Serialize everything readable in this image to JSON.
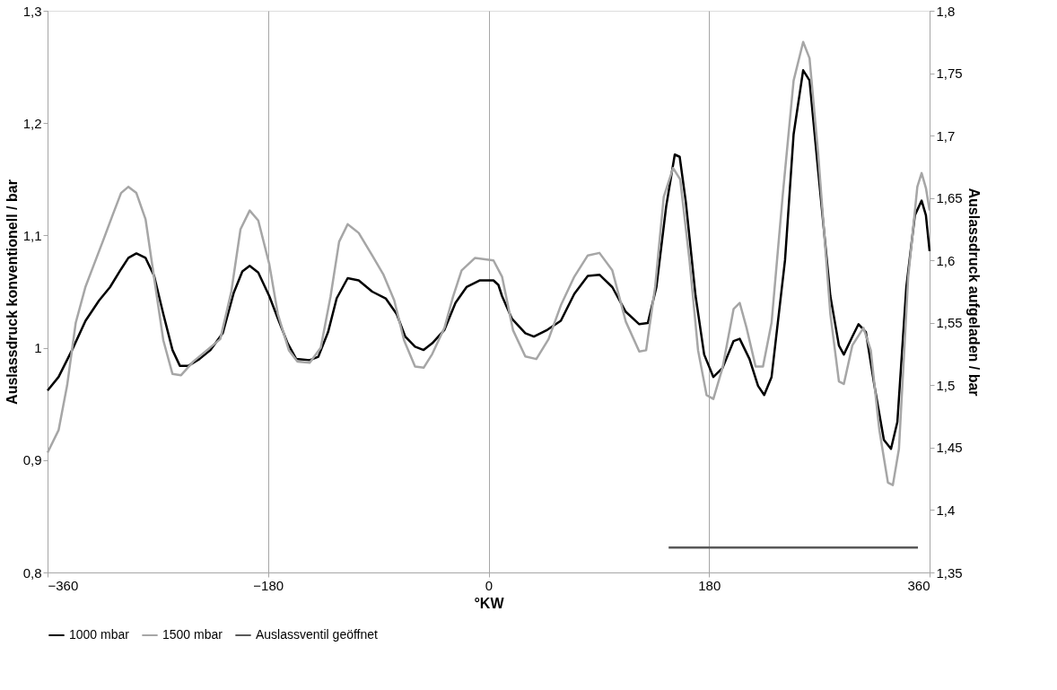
{
  "chart_data": {
    "type": "line",
    "xlabel": "°KW",
    "ylabel": "Auslassdruck konventionell / bar",
    "y2label": "Auslassdruck aufgeladen / bar",
    "xlim": [
      -360,
      360
    ],
    "xticks": [
      -360,
      -180,
      0,
      180,
      360
    ],
    "ylim": [
      0.8,
      1.3
    ],
    "yticks": [
      {
        "value": 0.8,
        "label": "0,8"
      },
      {
        "value": 0.9,
        "label": "0,9"
      },
      {
        "value": 1.0,
        "label": "1"
      },
      {
        "value": 1.1,
        "label": "1,1"
      },
      {
        "value": 1.2,
        "label": "1,2"
      },
      {
        "value": 1.3,
        "label": "1,3"
      }
    ],
    "y2lim": [
      1.35,
      1.8
    ],
    "y2ticks": [
      {
        "value": 1.35,
        "label": "1,35"
      },
      {
        "value": 1.4,
        "label": "1,4"
      },
      {
        "value": 1.45,
        "label": "1,45"
      },
      {
        "value": 1.5,
        "label": "1,5"
      },
      {
        "value": 1.55,
        "label": "1,55"
      },
      {
        "value": 1.6,
        "label": "1,6"
      },
      {
        "value": 1.65,
        "label": "1,65"
      },
      {
        "value": 1.7,
        "label": "1,7"
      },
      {
        "value": 1.75,
        "label": "1,75"
      },
      {
        "value": 1.8,
        "label": "1,8"
      }
    ],
    "grid": "x",
    "legend": "bottom",
    "marker": "none",
    "line_style": "solid",
    "series": [
      {
        "name": "1000 mbar",
        "color": "#000000",
        "axis": "y",
        "x": [
          -360,
          -351,
          -340,
          -329,
          -318,
          -309,
          -300,
          -294,
          -287.5,
          -280,
          -273,
          -265.5,
          -258,
          -252,
          -245,
          -236,
          -227,
          -217,
          -208,
          -201,
          -195,
          -188,
          -179,
          -172,
          -164,
          -157,
          -146,
          -139,
          -131,
          -124,
          -115,
          -106,
          -95,
          -84,
          -75,
          -68,
          -60,
          -53,
          -46,
          -36,
          -27,
          -18,
          -7,
          4,
          8,
          11,
          19,
          30,
          37,
          48,
          59,
          70,
          81,
          90.5,
          101,
          112,
          123,
          130,
          137,
          145,
          152,
          156,
          161,
          169,
          176,
          183.5,
          191,
          200,
          205,
          213,
          220,
          225,
          231,
          242,
          249,
          256.8,
          262,
          269,
          279,
          286,
          290,
          297,
          302,
          308,
          315,
          322.7,
          328.5,
          333.7,
          341,
          348,
          353.5,
          357,
          360
        ],
        "values": [
          0.962,
          0.974,
          0.998,
          1.024,
          1.042,
          1.054,
          1.07,
          1.08,
          1.084,
          1.08,
          1.064,
          1.03,
          0.998,
          0.984,
          0.984,
          0.99,
          0.998,
          1.013,
          1.049,
          1.068,
          1.073,
          1.067,
          1.046,
          1.026,
          1.004,
          0.99,
          0.989,
          0.992,
          1.014,
          1.044,
          1.062,
          1.06,
          1.05,
          1.044,
          1.03,
          1.01,
          1.001,
          0.998,
          1.004,
          1.016,
          1.04,
          1.054,
          1.06,
          1.06,
          1.056,
          1.046,
          1.026,
          1.013,
          1.01,
          1.016,
          1.024,
          1.048,
          1.064,
          1.065,
          1.054,
          1.032,
          1.021,
          1.022,
          1.054,
          1.126,
          1.172,
          1.17,
          1.13,
          1.046,
          0.994,
          0.974,
          0.982,
          1.006,
          1.008,
          0.99,
          0.966,
          0.958,
          0.974,
          1.078,
          1.19,
          1.247,
          1.238,
          1.158,
          1.046,
          1.002,
          0.994,
          1.01,
          1.021,
          1.014,
          0.966,
          0.918,
          0.91,
          0.934,
          1.054,
          1.118,
          1.131,
          1.118,
          1.086
        ]
      },
      {
        "name": "1500 mbar",
        "color": "#a6a6a6",
        "axis": "y2",
        "x": [
          -360,
          -351,
          -344,
          -337,
          -329,
          -322,
          -315,
          -307,
          -300,
          -294,
          -287.5,
          -280,
          -273,
          -265.5,
          -258,
          -251,
          -241,
          -230,
          -219,
          -210,
          -202.5,
          -195,
          -188,
          -179,
          -172,
          -163,
          -156,
          -146,
          -137,
          -129,
          -122,
          -115,
          -106,
          -95,
          -86,
          -77,
          -69,
          -60,
          -53,
          -46,
          -36,
          -29,
          -22,
          -11,
          4,
          11,
          20,
          30,
          39,
          49,
          59,
          70,
          81,
          90.5,
          101,
          112,
          123,
          128.6,
          136,
          143,
          150.6,
          156.4,
          164,
          171,
          178,
          183.5,
          191,
          200,
          205,
          210.6,
          218,
          224,
          231,
          240,
          249,
          256.8,
          262,
          269,
          279,
          286,
          290,
          297,
          306,
          312,
          319,
          326,
          330,
          335,
          342.5,
          350,
          353.5,
          357,
          360
        ],
        "values": [
          1.446,
          1.464,
          1.5,
          1.55,
          1.579,
          1.597,
          1.615,
          1.636,
          1.654,
          1.659,
          1.654,
          1.633,
          1.586,
          1.536,
          1.509,
          1.508,
          1.519,
          1.528,
          1.537,
          1.575,
          1.625,
          1.64,
          1.632,
          1.597,
          1.557,
          1.528,
          1.519,
          1.518,
          1.53,
          1.571,
          1.615,
          1.629,
          1.622,
          1.604,
          1.589,
          1.568,
          1.536,
          1.515,
          1.514,
          1.525,
          1.546,
          1.571,
          1.592,
          1.602,
          1.6,
          1.587,
          1.544,
          1.523,
          1.521,
          1.537,
          1.564,
          1.587,
          1.604,
          1.606,
          1.592,
          1.551,
          1.527,
          1.528,
          1.579,
          1.651,
          1.674,
          1.665,
          1.6,
          1.528,
          1.492,
          1.489,
          1.514,
          1.561,
          1.566,
          1.546,
          1.515,
          1.515,
          1.55,
          1.651,
          1.744,
          1.775,
          1.762,
          1.686,
          1.557,
          1.503,
          1.501,
          1.532,
          1.546,
          1.528,
          1.464,
          1.422,
          1.42,
          1.449,
          1.586,
          1.659,
          1.67,
          1.658,
          1.64
        ]
      },
      {
        "name": "Auslassventil geöffnet",
        "color": "#595959",
        "axis": "y2",
        "x": [
          147,
          350.5
        ],
        "values": [
          1.37,
          1.37
        ]
      }
    ]
  }
}
